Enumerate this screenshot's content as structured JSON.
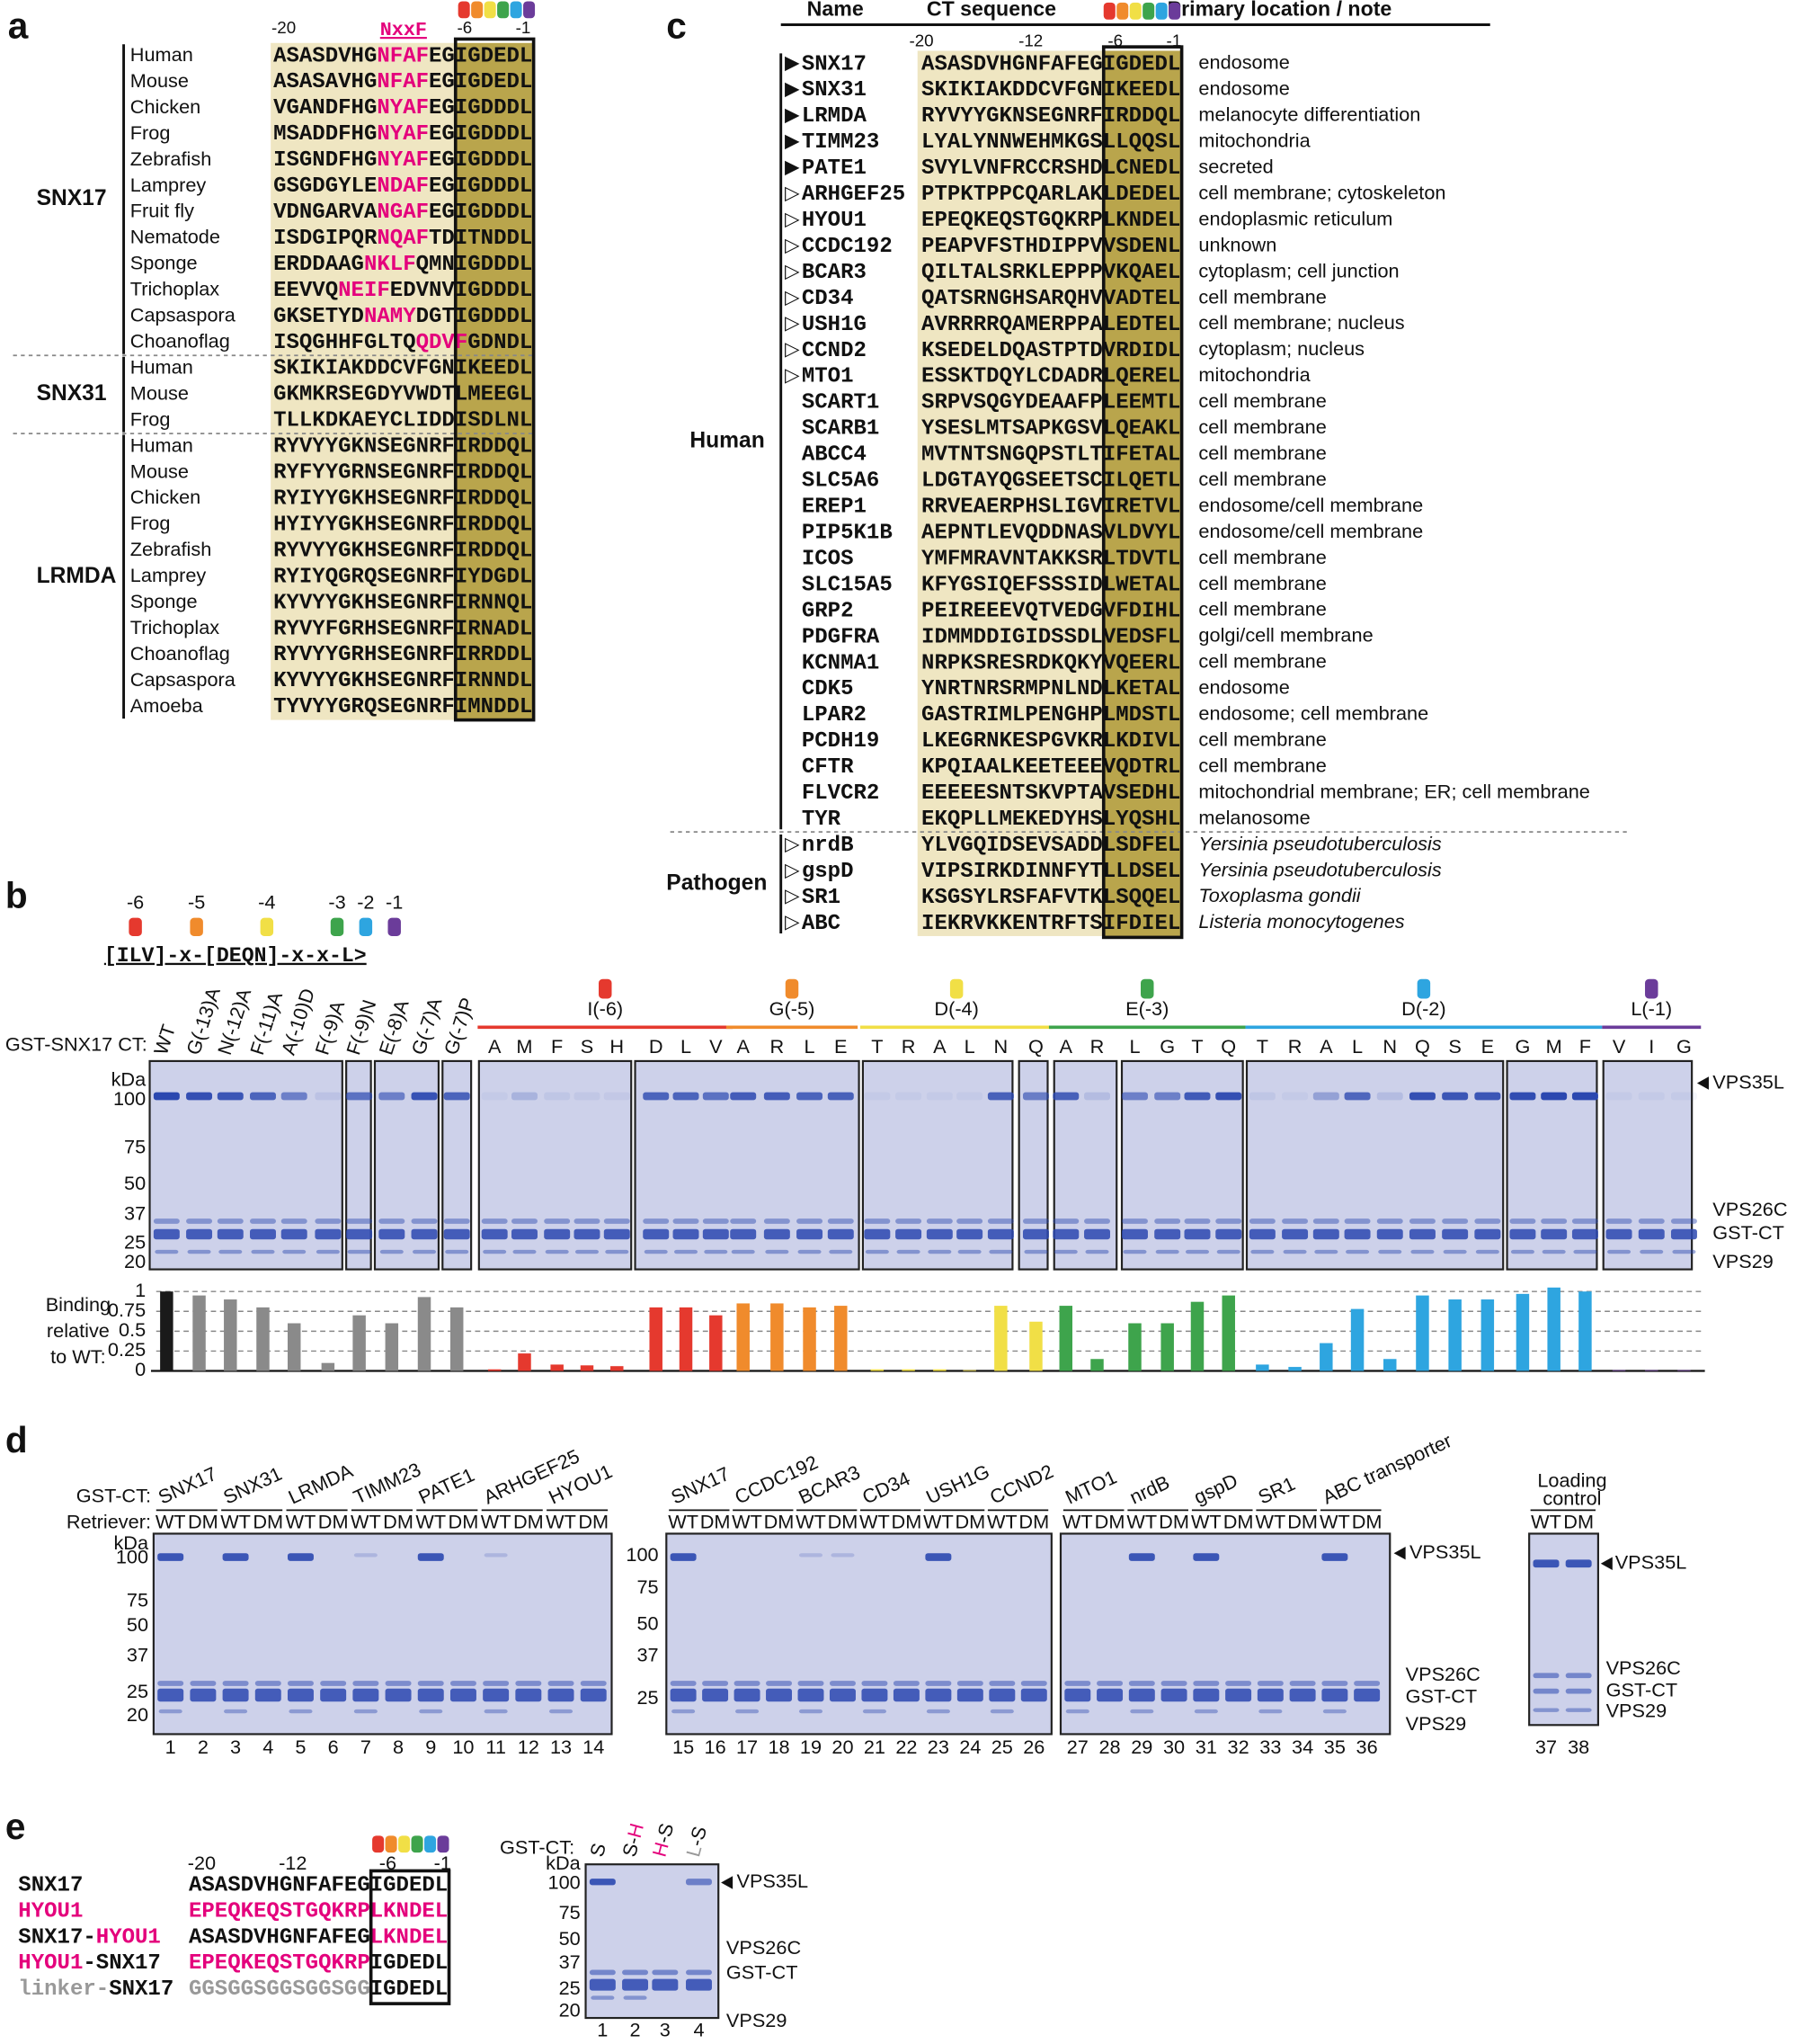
{
  "panel_a": {
    "label": "a",
    "ticks": [
      "-20",
      "-6",
      "-1"
    ],
    "motif": "NxxF",
    "groups": [
      {
        "name": "SNX17",
        "rows": [
          {
            "name": "Human",
            "seq": [
              {
                "t": "ASASDVHG"
              },
              {
                "t": "NFAF",
                "c": "#e4007c"
              },
              {
                "t": "EGIGDEDL"
              }
            ]
          },
          {
            "name": "Mouse",
            "seq": [
              {
                "t": "ASASAVHG"
              },
              {
                "t": "NFAF",
                "c": "#e4007c"
              },
              {
                "t": "EGIGDEDL"
              }
            ]
          },
          {
            "name": "Chicken",
            "seq": [
              {
                "t": "VGANDFHG"
              },
              {
                "t": "NYAF",
                "c": "#e4007c"
              },
              {
                "t": "EGIGDDDL"
              }
            ]
          },
          {
            "name": "Frog",
            "seq": [
              {
                "t": "MSADDFHG"
              },
              {
                "t": "NYAF",
                "c": "#e4007c"
              },
              {
                "t": "EGIGDDDL"
              }
            ]
          },
          {
            "name": "Zebrafish",
            "seq": [
              {
                "t": "ISGNDFHG"
              },
              {
                "t": "NYAF",
                "c": "#e4007c"
              },
              {
                "t": "EGIGDDDL"
              }
            ]
          },
          {
            "name": "Lamprey",
            "seq": [
              {
                "t": "GSGDGYLE"
              },
              {
                "t": "NDAF",
                "c": "#e4007c"
              },
              {
                "t": "EGIGDDDL"
              }
            ]
          },
          {
            "name": "Fruit fly",
            "seq": [
              {
                "t": "VDNGARVA"
              },
              {
                "t": "NGAF",
                "c": "#e4007c"
              },
              {
                "t": "EGIGDDDL"
              }
            ]
          },
          {
            "name": "Nematode",
            "seq": [
              {
                "t": "ISDGIPQR"
              },
              {
                "t": "NQAF",
                "c": "#e4007c"
              },
              {
                "t": "TDITNDDL"
              }
            ]
          },
          {
            "name": "Sponge",
            "seq": [
              {
                "t": "ERDDAAG"
              },
              {
                "t": "NKLF",
                "c": "#e4007c"
              },
              {
                "t": "QMNIGDDDL"
              }
            ]
          },
          {
            "name": "Trichoplax",
            "seq": [
              {
                "t": "EEVVQ"
              },
              {
                "t": "NEIF",
                "c": "#e4007c"
              },
              {
                "t": "EDVNVIGDDDL"
              }
            ]
          },
          {
            "name": "Capsaspora",
            "seq": [
              {
                "t": "GKSETYD"
              },
              {
                "t": "NAMY",
                "c": "#e4007c"
              },
              {
                "t": "DGTIGDDDL"
              }
            ]
          },
          {
            "name": "Choanoflag",
            "seq": [
              {
                "t": "ISQGHHFGLTQ"
              },
              {
                "t": "QDVF",
                "c": "#e4007c"
              },
              {
                "t": "GDNDL"
              }
            ]
          }
        ]
      },
      {
        "name": "SNX31",
        "rows": [
          {
            "name": "Human",
            "seq": [
              {
                "t": "SKIKIAKDDCVFGNIKEEDL"
              }
            ]
          },
          {
            "name": "Mouse",
            "seq": [
              {
                "t": "GKMKRSEGDYVWDTLMEEGL"
              }
            ]
          },
          {
            "name": "Frog",
            "seq": [
              {
                "t": "TLLKDKAEYCLIDDISDLNL"
              }
            ]
          }
        ]
      },
      {
        "name": "LRMDA",
        "rows": [
          {
            "name": "Human",
            "seq": [
              {
                "t": "RYVYYGKNSEGNRFIRDDQL"
              }
            ]
          },
          {
            "name": "Mouse",
            "seq": [
              {
                "t": "RYFYYGRNSEGNRFIRDDQL"
              }
            ]
          },
          {
            "name": "Chicken",
            "seq": [
              {
                "t": "RYIYYGKHSEGNRFIRDDQL"
              }
            ]
          },
          {
            "name": "Frog",
            "seq": [
              {
                "t": "HYIYYGKHSEGNRFIRDDQL"
              }
            ]
          },
          {
            "name": "Zebrafish",
            "seq": [
              {
                "t": "RYVYYGKHSEGNRFIRDDQL"
              }
            ]
          },
          {
            "name": "Lamprey",
            "seq": [
              {
                "t": "RYIYQGRQSEGNRFIYDGDL"
              }
            ]
          },
          {
            "name": "Sponge",
            "seq": [
              {
                "t": "KYVYYGKHSEGNRFIRNNQL"
              }
            ]
          },
          {
            "name": "Trichoplax",
            "seq": [
              {
                "t": "RYVYFGRHSEGNRFIRNADL"
              }
            ]
          },
          {
            "name": "Choanoflag",
            "seq": [
              {
                "t": "RYVYYGRHSEGNRFIRRDDL"
              }
            ]
          },
          {
            "name": "Capsaspora",
            "seq": [
              {
                "t": "KYVYYGKHSEGNRFIRNNDL"
              }
            ]
          },
          {
            "name": "Amoeba",
            "seq": [
              {
                "t": "TYVYYGRQSEGNRFIMNDDL"
              }
            ]
          }
        ]
      }
    ]
  },
  "panel_c": {
    "label": "c",
    "headers": [
      "Name",
      "CT sequence",
      "Primary location / note"
    ],
    "ticks": [
      "-20",
      "-12",
      "-6",
      "-1"
    ],
    "groups": [
      {
        "name": "Human",
        "italic": false,
        "rows": [
          {
            "mark": "▶",
            "name": "SNX17",
            "seq": "ASASDVHGNFAFEGIGDEDL",
            "loc": "endosome"
          },
          {
            "mark": "▶",
            "name": "SNX31",
            "seq": "SKIKIAKDDCVFGNIKEEDL",
            "loc": "endosome"
          },
          {
            "mark": "▶",
            "name": "LRMDA",
            "seq": "RYVYYGKNSEGNRFIRDDQL",
            "loc": "melanocyte differentiation"
          },
          {
            "mark": "▶",
            "name": "TIMM23",
            "seq": "LYALYNNWEHMKGSLLQQSL",
            "loc": "mitochondria"
          },
          {
            "mark": "▶",
            "name": "PATE1",
            "seq": "SVYLVNFRCCRSHDLCNEDL",
            "loc": "secreted"
          },
          {
            "mark": "▷",
            "name": "ARHGEF25",
            "seq": "PTPKTPPCQARLAKLDEDEL",
            "loc": "cell membrane; cytoskeleton"
          },
          {
            "mark": "▷",
            "name": "HYOU1",
            "seq": "EPEQKEQSTGQKRPLKNDEL",
            "loc": "endoplasmic reticulum"
          },
          {
            "mark": "▷",
            "name": "CCDC192",
            "seq": "PEAPVFSTHDIPPVVSDENL",
            "loc": "unknown"
          },
          {
            "mark": "▷",
            "name": "BCAR3",
            "seq": "QILTALSRKLEPPPVKQAEL",
            "loc": "cytoplasm; cell junction"
          },
          {
            "mark": "▷",
            "name": "CD34",
            "seq": "QATSRNGHSARQHVVADTEL",
            "loc": "cell membrane"
          },
          {
            "mark": "▷",
            "name": "USH1G",
            "seq": "AVRRRRQAMERPPALEDTEL",
            "loc": "cell membrane; nucleus"
          },
          {
            "mark": "▷",
            "name": "CCND2",
            "seq": "KSEDELDQASTPTDVRDIDL",
            "loc": "cytoplasm; nucleus"
          },
          {
            "mark": "▷",
            "name": "MTO1",
            "seq": "ESSKTDQYLCDADRLQEREL",
            "loc": "mitochondria"
          },
          {
            "name": "SCART1",
            "seq": "SRPVSQGYDEAAFPLEEMTL",
            "loc": "cell membrane"
          },
          {
            "name": "SCARB1",
            "seq": "YSESLMTSAPKGSVLQEAKL",
            "loc": "cell membrane"
          },
          {
            "name": "ABCC4",
            "seq": "MVTNTSNGQPSTLTIFETAL",
            "loc": "cell membrane"
          },
          {
            "name": "SLC5A6",
            "seq": "LDGTAYQGSEETSCILQETL",
            "loc": "cell membrane"
          },
          {
            "name": "EREP1",
            "seq": "RRVEAERPHSLIGVIRETVL",
            "loc": "endosome/cell membrane"
          },
          {
            "name": "PIP5K1B",
            "seq": "AEPNTLEVQDDNASVLDVYL",
            "loc": "endosome/cell membrane"
          },
          {
            "name": "ICOS",
            "seq": "YMFMRAVNTAKKSRLTDVTL",
            "loc": "cell membrane"
          },
          {
            "name": "SLC15A5",
            "seq": "KFYGSIQEFSSSIDLWETAL",
            "loc": "cell membrane"
          },
          {
            "name": "GRP2",
            "seq": "PEIREEEVQTVEDGVFDIHL",
            "loc": "cell membrane"
          },
          {
            "name": "PDGFRA",
            "seq": "IDMMDDIGIDSSDLVEDSFL",
            "loc": "golgi/cell membrane"
          },
          {
            "name": "KCNMA1",
            "seq": "NRPKSRESRDKQKYVQEERL",
            "loc": "cell membrane"
          },
          {
            "name": "CDK5",
            "seq": "YNRTNRSRMPNLNDLKETAL",
            "loc": "endosome"
          },
          {
            "name": "LPAR2",
            "seq": "GASTRIMLPENGHPLMDSTL",
            "loc": "endosome; cell membrane"
          },
          {
            "name": "PCDH19",
            "seq": "LKEGRNKESPGVKRLKDIVL",
            "loc": "cell membrane"
          },
          {
            "name": "CFTR",
            "seq": "KPQIAALKEETEEEVQDTRL",
            "loc": "cell membrane"
          },
          {
            "name": "FLVCR2",
            "seq": "EEEEESNTSKVPTAVSEDHL",
            "loc": "mitochondrial membrane; ER; cell membrane"
          },
          {
            "name": "TYR",
            "seq": "EKQPLLMEKEDYHSLYQSHL",
            "loc": "melanosome"
          }
        ]
      },
      {
        "name": "Pathogen",
        "italic": true,
        "rows": [
          {
            "mark": "▷",
            "name": "nrdB",
            "seq": "YLVGQIDSEVSADDLSDFEL",
            "loc": "Yersinia pseudotuberculosis"
          },
          {
            "mark": "▷",
            "name": "gspD",
            "seq": "VIPSIRKDINNFYTLLDSEL",
            "loc": "Yersinia pseudotuberculosis"
          },
          {
            "mark": "▷",
            "name": "SR1",
            "seq": "KSGSYLRSFAFVTKLSQQEL",
            "loc": "Toxoplasma gondii"
          },
          {
            "mark": "▷",
            "name": "ABC",
            "seq": "IEKRVKKENTRFTSIFDIEL",
            "loc": "Listeria monocytogenes"
          }
        ]
      }
    ]
  },
  "panel_b": {
    "label": "b",
    "key_positions": [
      "-6",
      "-5",
      "-4",
      "-3",
      "-2",
      "-1"
    ],
    "motif": "[ILV]-x-[DEQN]-x-x-L>",
    "lane_title": "GST-SNX17 CT:",
    "groups": [
      {
        "color": "#8a8a8a",
        "wt_color": "#1a1a1a",
        "lanes": [
          "WT",
          "G(-13)A",
          "N(-12)A",
          "F(-11)A",
          "A(-10)D",
          "F(-9)A",
          "F(-9)N",
          "E(-8)A",
          "G(-7)A",
          "G(-7)P"
        ]
      },
      {
        "name": "I(-6)",
        "color": "#e5392e",
        "lanes": [
          "A",
          "M",
          "F",
          "S",
          "H",
          "D",
          "L",
          "V"
        ]
      },
      {
        "name": "G(-5)",
        "color": "#f08b2c",
        "lanes": [
          "A",
          "R",
          "L",
          "E"
        ]
      },
      {
        "name": "D(-4)",
        "color": "#f1df46",
        "lanes": [
          "T",
          "R",
          "A",
          "L",
          "N",
          "Q"
        ]
      },
      {
        "name": "E(-3)",
        "color": "#3ea44c",
        "lanes": [
          "A",
          "R",
          "L",
          "G",
          "T",
          "Q"
        ]
      },
      {
        "name": "D(-2)",
        "color": "#2ea5e0",
        "lanes": [
          "T",
          "R",
          "A",
          "L",
          "N",
          "Q",
          "S",
          "E",
          "G",
          "M",
          "F"
        ]
      },
      {
        "name": "L(-1)",
        "color": "#6b3c9a",
        "lanes": [
          "V",
          "I",
          "G"
        ]
      }
    ],
    "kda": {
      "unit": "kDa",
      "marks": [
        100,
        75,
        50,
        37,
        25,
        20
      ]
    },
    "proteins": [
      "VPS35L",
      "VPS26C",
      "GST-CT",
      "VPS29"
    ],
    "binding": {
      "label": [
        "Binding",
        "relative",
        "to WT:"
      ],
      "ylim": [
        0,
        1.1
      ],
      "yticks": [
        0,
        0.25,
        0.5,
        0.75,
        1
      ],
      "values": [
        1.0,
        0.95,
        0.9,
        0.8,
        0.6,
        0.1,
        0.7,
        0.6,
        0.93,
        0.8,
        0.02,
        0.22,
        0.08,
        0.07,
        0.06,
        0.8,
        0.8,
        0.7,
        0.85,
        0.85,
        0.8,
        0.82,
        0.02,
        0.02,
        0.02,
        0.01,
        0.82,
        0.62,
        0.82,
        0.15,
        0.6,
        0.6,
        0.87,
        0.95,
        0.08,
        0.05,
        0.35,
        0.78,
        0.15,
        0.95,
        0.9,
        0.9,
        0.97,
        1.05,
        1.0,
        0.01,
        0.01,
        0.01
      ]
    }
  },
  "panel_d": {
    "label": "d",
    "gst_label": "GST-CT:",
    "retriever_label": "Retriever:",
    "retriever": [
      "WT",
      "DM"
    ],
    "gels": [
      {
        "constructs": [
          "SNX17",
          "SNX31",
          "LRMDA",
          "TIMM23",
          "PATE1",
          "ARHGEF25",
          "HYOU1"
        ],
        "lanes": [
          1,
          2,
          3,
          4,
          5,
          6,
          7,
          8,
          9,
          10,
          11,
          12,
          13,
          14
        ]
      },
      {
        "constructs": [
          "SNX17",
          "CCDC192",
          "BCAR3",
          "CD34",
          "USH1G",
          "CCND2"
        ],
        "lanes": [
          15,
          16,
          17,
          18,
          19,
          20,
          21,
          22,
          23,
          24,
          25,
          26
        ]
      },
      {
        "constructs": [
          "MTO1",
          "nrdB",
          "gspD",
          "SR1",
          "ABC transporter"
        ],
        "lanes": [
          27,
          28,
          29,
          30,
          31,
          32,
          33,
          34,
          35,
          36
        ]
      },
      {
        "title": [
          "Loading",
          "control"
        ],
        "lanes": [
          37,
          38
        ]
      }
    ],
    "kda": {
      "unit": "kDa",
      "marks": [
        100,
        75,
        50,
        37,
        25,
        20
      ]
    },
    "proteins": [
      "VPS35L",
      "VPS26C",
      "GST-CT",
      "VPS29"
    ]
  },
  "panel_e": {
    "label": "e",
    "ticks": [
      "-20",
      "-12",
      "-6",
      "-1"
    ],
    "rows": [
      {
        "name": [
          {
            "t": "SNX17"
          }
        ],
        "seq": [
          {
            "t": "ASASDVHGNFAFEGIGDEDL"
          }
        ]
      },
      {
        "name": [
          {
            "t": "HYOU1",
            "c": "#e4007c"
          }
        ],
        "seq": [
          {
            "t": "EPEQKEQSTGQKRPLKNDEL",
            "c": "#e4007c"
          }
        ]
      },
      {
        "name": [
          {
            "t": "SNX17-"
          },
          {
            "t": "HYOU1",
            "c": "#e4007c"
          }
        ],
        "seq": [
          {
            "t": "ASASDVHGNFAFEG"
          },
          {
            "t": "LKNDEL",
            "c": "#e4007c"
          }
        ]
      },
      {
        "name": [
          {
            "t": "HYOU1",
            "c": "#e4007c"
          },
          {
            "t": "-SNX17"
          }
        ],
        "seq": [
          {
            "t": "EPEQKEQSTGQKRP",
            "c": "#e4007c"
          },
          {
            "t": "IGDEDL"
          }
        ]
      },
      {
        "name": [
          {
            "t": "linker-",
            "c": "#999999"
          },
          {
            "t": "SNX17"
          }
        ],
        "seq": [
          {
            "t": "GGSGGSGGSGGSGG",
            "c": "#999999"
          },
          {
            "t": "IGDEDL"
          }
        ]
      }
    ],
    "gst_label": "GST-CT:",
    "lanes": [
      [
        {
          "t": "S"
        }
      ],
      [
        {
          "t": "S-"
        },
        {
          "t": "H",
          "c": "#e4007c"
        }
      ],
      [
        {
          "t": "H",
          "c": "#e4007c"
        },
        {
          "t": "-S"
        }
      ],
      [
        {
          "t": "L",
          "c": "#999999"
        },
        {
          "t": "-S"
        }
      ]
    ],
    "lane_numbers": [
      1,
      2,
      3,
      4
    ],
    "kda": {
      "unit": "kDa",
      "marks": [
        100,
        75,
        50,
        37,
        25,
        20
      ]
    },
    "proteins": [
      "VPS35L",
      "VPS26C",
      "GST-CT",
      "VPS29"
    ]
  }
}
